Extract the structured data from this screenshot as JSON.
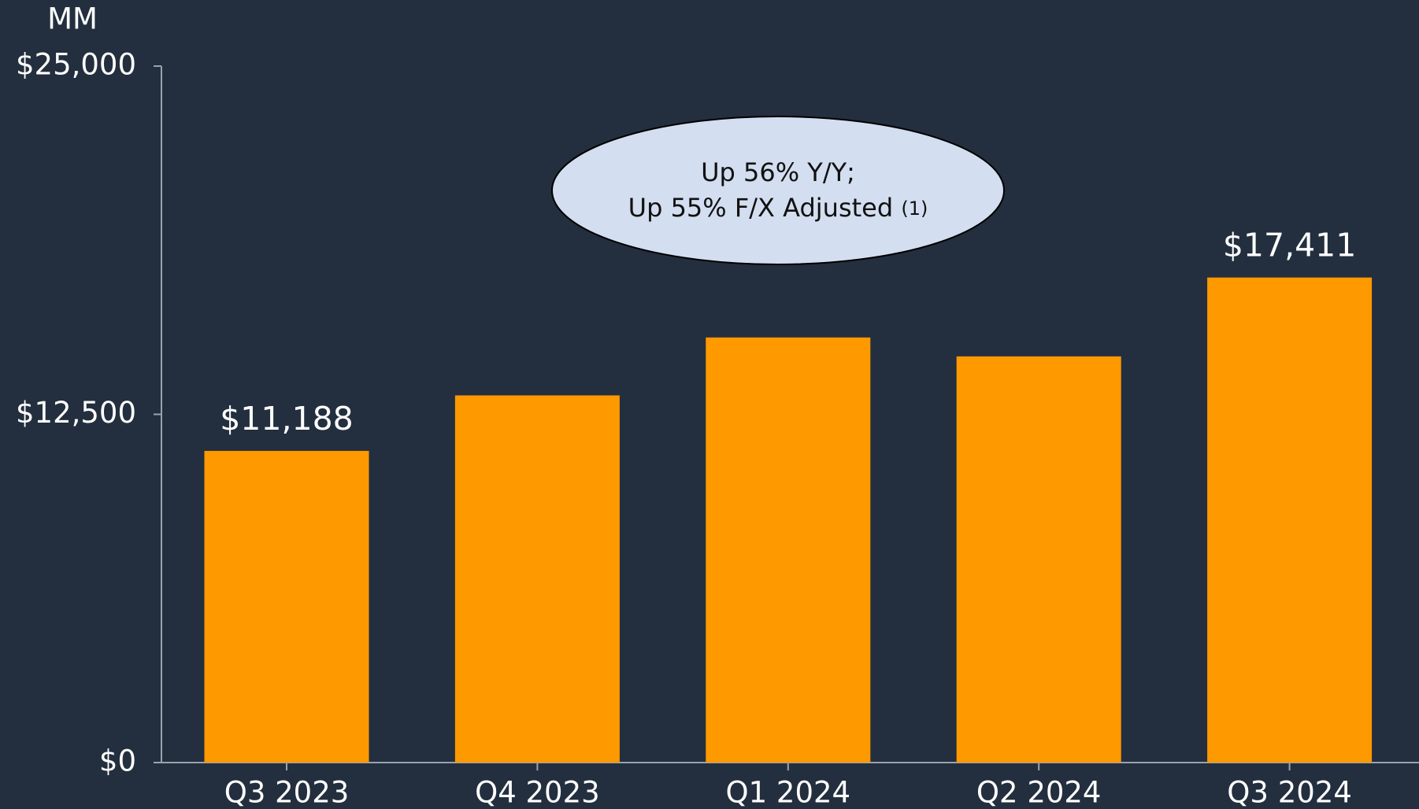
{
  "chart_data": {
    "type": "bar",
    "unit_label": "MM",
    "categories": [
      "Q3 2023",
      "Q4 2023",
      "Q1 2024",
      "Q2 2024",
      "Q3 2024"
    ],
    "values": [
      11188,
      13180,
      15260,
      14580,
      17411
    ],
    "value_labels": [
      "$11,188",
      null,
      null,
      null,
      "$17,411"
    ],
    "color": "#ff9900",
    "ylim": [
      0,
      25000
    ],
    "yticks": [
      {
        "value": 0,
        "label": "$0"
      },
      {
        "value": 12500,
        "label": "$12,500"
      },
      {
        "value": 25000,
        "label": "$25,000"
      }
    ],
    "annotation": {
      "lines": [
        "Up 56% Y/Y;",
        "Up 55% F/X Adjusted"
      ],
      "footnote": "(1)"
    }
  }
}
